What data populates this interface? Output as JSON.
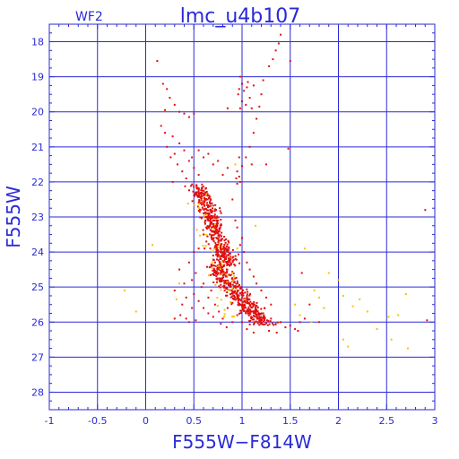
{
  "chart_data": {
    "type": "scatter",
    "panel_label": "WF2",
    "title": "lmc_u4b107",
    "xlabel": "F555W−F814W",
    "ylabel": "F555W",
    "xlim": [
      -1,
      3
    ],
    "ylim": [
      28.5,
      17.5
    ],
    "y_inverted": true,
    "x_ticks": [
      {
        "value": -1,
        "label": "-1"
      },
      {
        "value": -0.5,
        "label": "-0.5"
      },
      {
        "value": 0,
        "label": "0"
      },
      {
        "value": 0.5,
        "label": "0.5"
      },
      {
        "value": 1,
        "label": "1"
      },
      {
        "value": 1.5,
        "label": "1.5"
      },
      {
        "value": 2,
        "label": "2"
      },
      {
        "value": 2.5,
        "label": "2.5"
      },
      {
        "value": 3,
        "label": "3"
      }
    ],
    "y_ticks": [
      {
        "value": 18,
        "label": "18"
      },
      {
        "value": 19,
        "label": "19"
      },
      {
        "value": 20,
        "label": "20"
      },
      {
        "value": 21,
        "label": "21"
      },
      {
        "value": 22,
        "label": "22"
      },
      {
        "value": 23,
        "label": "23"
      },
      {
        "value": 24,
        "label": "24"
      },
      {
        "value": 25,
        "label": "25"
      },
      {
        "value": 26,
        "label": "26"
      },
      {
        "value": 27,
        "label": "27"
      },
      {
        "value": 28,
        "label": "28"
      }
    ],
    "grid": true,
    "colors": {
      "frame": "#2a2ad6",
      "main_points": "#e01010",
      "secondary_points": "#f6c200"
    },
    "series": [
      {
        "color_key": "main_points",
        "points": [
          [
            0.12,
            18.55
          ],
          [
            0.18,
            19.2
          ],
          [
            0.22,
            19.35
          ],
          [
            0.25,
            19.6
          ],
          [
            0.2,
            19.95
          ],
          [
            0.3,
            19.8
          ],
          [
            0.35,
            20.0
          ],
          [
            0.4,
            20.05
          ],
          [
            0.45,
            20.15
          ],
          [
            0.5,
            20.05
          ],
          [
            0.16,
            20.4
          ],
          [
            0.2,
            20.6
          ],
          [
            0.28,
            20.7
          ],
          [
            0.35,
            20.9
          ],
          [
            0.4,
            21.1
          ],
          [
            0.22,
            21.0
          ],
          [
            0.26,
            21.3
          ],
          [
            0.33,
            21.5
          ],
          [
            0.3,
            21.2
          ],
          [
            0.45,
            21.4
          ],
          [
            0.38,
            21.7
          ],
          [
            0.42,
            21.9
          ],
          [
            0.5,
            21.6
          ],
          [
            0.55,
            21.8
          ],
          [
            0.48,
            21.3
          ],
          [
            0.65,
            21.2
          ],
          [
            0.7,
            21.5
          ],
          [
            0.75,
            21.4
          ],
          [
            0.8,
            21.8
          ],
          [
            0.85,
            21.6
          ],
          [
            0.55,
            21.1
          ],
          [
            0.6,
            21.3
          ],
          [
            0.28,
            22.0
          ],
          [
            0.85,
            19.9
          ],
          [
            0.97,
            21.3
          ],
          [
            0.95,
            21.7
          ],
          [
            0.98,
            22.0
          ],
          [
            0.94,
            21.9
          ],
          [
            1.1,
            21.5
          ],
          [
            1.25,
            21.5
          ],
          [
            1.48,
            21.05
          ],
          [
            1.5,
            18.55
          ],
          [
            0.98,
            19.0
          ],
          [
            1.0,
            19.2
          ],
          [
            1.05,
            19.3
          ],
          [
            1.02,
            19.4
          ],
          [
            0.96,
            19.5
          ],
          [
            1.08,
            19.6
          ],
          [
            1.0,
            19.7
          ],
          [
            1.04,
            19.8
          ],
          [
            0.98,
            19.9
          ],
          [
            1.1,
            19.9
          ],
          [
            1.06,
            19.15
          ],
          [
            0.97,
            19.35
          ],
          [
            1.12,
            19.25
          ],
          [
            1.32,
            18.5
          ],
          [
            1.35,
            18.25
          ],
          [
            1.38,
            18.05
          ],
          [
            1.28,
            18.7
          ],
          [
            1.4,
            17.8
          ],
          [
            1.22,
            19.1
          ],
          [
            1.2,
            19.5
          ],
          [
            1.18,
            19.85
          ],
          [
            1.15,
            20.2
          ],
          [
            1.12,
            20.6
          ],
          [
            1.08,
            21.0
          ],
          [
            1.04,
            21.3
          ],
          [
            1.0,
            21.55
          ],
          [
            0.97,
            21.85
          ],
          [
            0.95,
            22.05
          ],
          [
            0.55,
            22.3
          ],
          [
            0.58,
            22.6
          ],
          [
            0.6,
            22.9
          ],
          [
            0.62,
            23.1
          ],
          [
            0.65,
            23.3
          ],
          [
            0.6,
            23.5
          ],
          [
            0.63,
            23.7
          ],
          [
            0.67,
            23.9
          ],
          [
            0.7,
            24.1
          ],
          [
            0.72,
            24.3
          ],
          [
            0.57,
            22.8
          ],
          [
            0.64,
            23.0
          ],
          [
            0.66,
            22.7
          ],
          [
            0.7,
            23.2
          ],
          [
            0.75,
            23.4
          ],
          [
            0.61,
            23.9
          ],
          [
            0.68,
            24.4
          ],
          [
            0.74,
            24.0
          ],
          [
            0.78,
            24.2
          ],
          [
            0.8,
            24.5
          ],
          [
            0.73,
            24.6
          ],
          [
            0.77,
            24.8
          ],
          [
            0.83,
            24.7
          ],
          [
            0.86,
            24.9
          ],
          [
            0.82,
            25.1
          ],
          [
            0.88,
            25.2
          ],
          [
            0.92,
            25.0
          ],
          [
            0.95,
            25.3
          ],
          [
            0.9,
            25.45
          ],
          [
            0.98,
            25.5
          ],
          [
            1.02,
            25.6
          ],
          [
            1.06,
            25.45
          ],
          [
            1.1,
            25.7
          ],
          [
            1.14,
            25.6
          ],
          [
            1.18,
            25.85
          ],
          [
            1.22,
            25.75
          ],
          [
            1.26,
            25.95
          ],
          [
            1.3,
            25.9
          ],
          [
            1.35,
            26.05
          ],
          [
            1.4,
            26.0
          ],
          [
            1.45,
            26.15
          ],
          [
            1.5,
            26.1
          ],
          [
            1.55,
            26.2
          ],
          [
            1.6,
            26.0
          ],
          [
            1.65,
            25.9
          ],
          [
            1.58,
            26.25
          ],
          [
            0.6,
            24.9
          ],
          [
            0.65,
            25.3
          ],
          [
            0.68,
            25.1
          ],
          [
            0.72,
            25.5
          ],
          [
            0.76,
            25.7
          ],
          [
            0.8,
            25.9
          ],
          [
            0.85,
            25.6
          ],
          [
            0.9,
            26.0
          ],
          [
            0.95,
            25.8
          ],
          [
            1.0,
            26.0
          ],
          [
            0.84,
            26.15
          ],
          [
            0.78,
            26.05
          ],
          [
            1.05,
            26.2
          ],
          [
            1.12,
            26.3
          ],
          [
            1.2,
            26.05
          ],
          [
            1.28,
            26.25
          ],
          [
            1.36,
            26.3
          ],
          [
            0.7,
            25.85
          ],
          [
            0.65,
            25.75
          ],
          [
            0.6,
            25.6
          ],
          [
            0.55,
            25.4
          ],
          [
            0.5,
            25.2
          ],
          [
            0.48,
            25.6
          ],
          [
            0.42,
            25.9
          ],
          [
            0.38,
            25.5
          ],
          [
            0.45,
            26.0
          ],
          [
            0.52,
            25.95
          ],
          [
            0.9,
            22.5
          ],
          [
            0.93,
            23.1
          ],
          [
            0.95,
            23.3
          ],
          [
            1.0,
            23.6
          ],
          [
            0.98,
            23.8
          ],
          [
            1.02,
            24.0
          ],
          [
            1.05,
            24.3
          ],
          [
            1.08,
            24.5
          ],
          [
            1.12,
            24.7
          ],
          [
            1.15,
            24.9
          ],
          [
            1.2,
            25.1
          ],
          [
            1.25,
            25.3
          ],
          [
            1.3,
            25.5
          ],
          [
            0.35,
            24.5
          ],
          [
            0.4,
            24.9
          ],
          [
            0.3,
            25.1
          ],
          [
            0.45,
            24.3
          ],
          [
            0.5,
            24.0
          ],
          [
            0.55,
            23.9
          ],
          [
            0.52,
            24.6
          ],
          [
            0.58,
            25.0
          ],
          [
            0.48,
            24.8
          ],
          [
            0.42,
            25.3
          ],
          [
            0.36,
            25.8
          ],
          [
            0.3,
            25.9
          ],
          [
            2.9,
            22.8
          ],
          [
            2.92,
            25.95
          ],
          [
            1.62,
            24.6
          ],
          [
            1.7,
            25.5
          ],
          [
            1.8,
            26.0
          ]
        ]
      },
      {
        "color_key": "secondary_points",
        "points": [
          [
            0.07,
            23.8
          ],
          [
            -0.22,
            25.1
          ],
          [
            -0.1,
            25.7
          ],
          [
            0.35,
            24.9
          ],
          [
            0.32,
            25.35
          ],
          [
            1.65,
            23.9
          ],
          [
            1.75,
            25.1
          ],
          [
            1.9,
            24.6
          ],
          [
            2.0,
            24.8
          ],
          [
            1.8,
            25.3
          ],
          [
            1.85,
            25.6
          ],
          [
            2.05,
            25.25
          ],
          [
            2.15,
            25.55
          ],
          [
            2.22,
            25.35
          ],
          [
            2.3,
            25.7
          ],
          [
            2.05,
            26.5
          ],
          [
            2.1,
            26.7
          ],
          [
            2.4,
            26.2
          ],
          [
            2.55,
            26.5
          ],
          [
            2.7,
            25.2
          ],
          [
            2.52,
            25.85
          ],
          [
            2.62,
            25.8
          ],
          [
            2.72,
            26.75
          ],
          [
            1.72,
            26.0
          ],
          [
            1.55,
            25.5
          ],
          [
            1.6,
            25.8
          ],
          [
            0.93,
            21.5
          ],
          [
            1.14,
            23.25
          ],
          [
            0.95,
            23.9
          ],
          [
            0.9,
            24.6
          ]
        ]
      }
    ],
    "dense_regions": [
      {
        "color_key": "main_points",
        "x_center": 0.7,
        "y_start": 22.1,
        "y_end": 24.4,
        "x_spread": 0.1,
        "slope": 0.13,
        "count": 420
      },
      {
        "color_key": "main_points",
        "x_center": 0.97,
        "y_start": 24.4,
        "y_end": 26.1,
        "x_spread": 0.13,
        "slope": 0.3,
        "count": 380
      },
      {
        "color_key": "secondary_points",
        "x_center": 0.72,
        "y_start": 22.3,
        "y_end": 25.9,
        "x_spread": 0.15,
        "slope": 0.1,
        "count": 50
      }
    ]
  }
}
